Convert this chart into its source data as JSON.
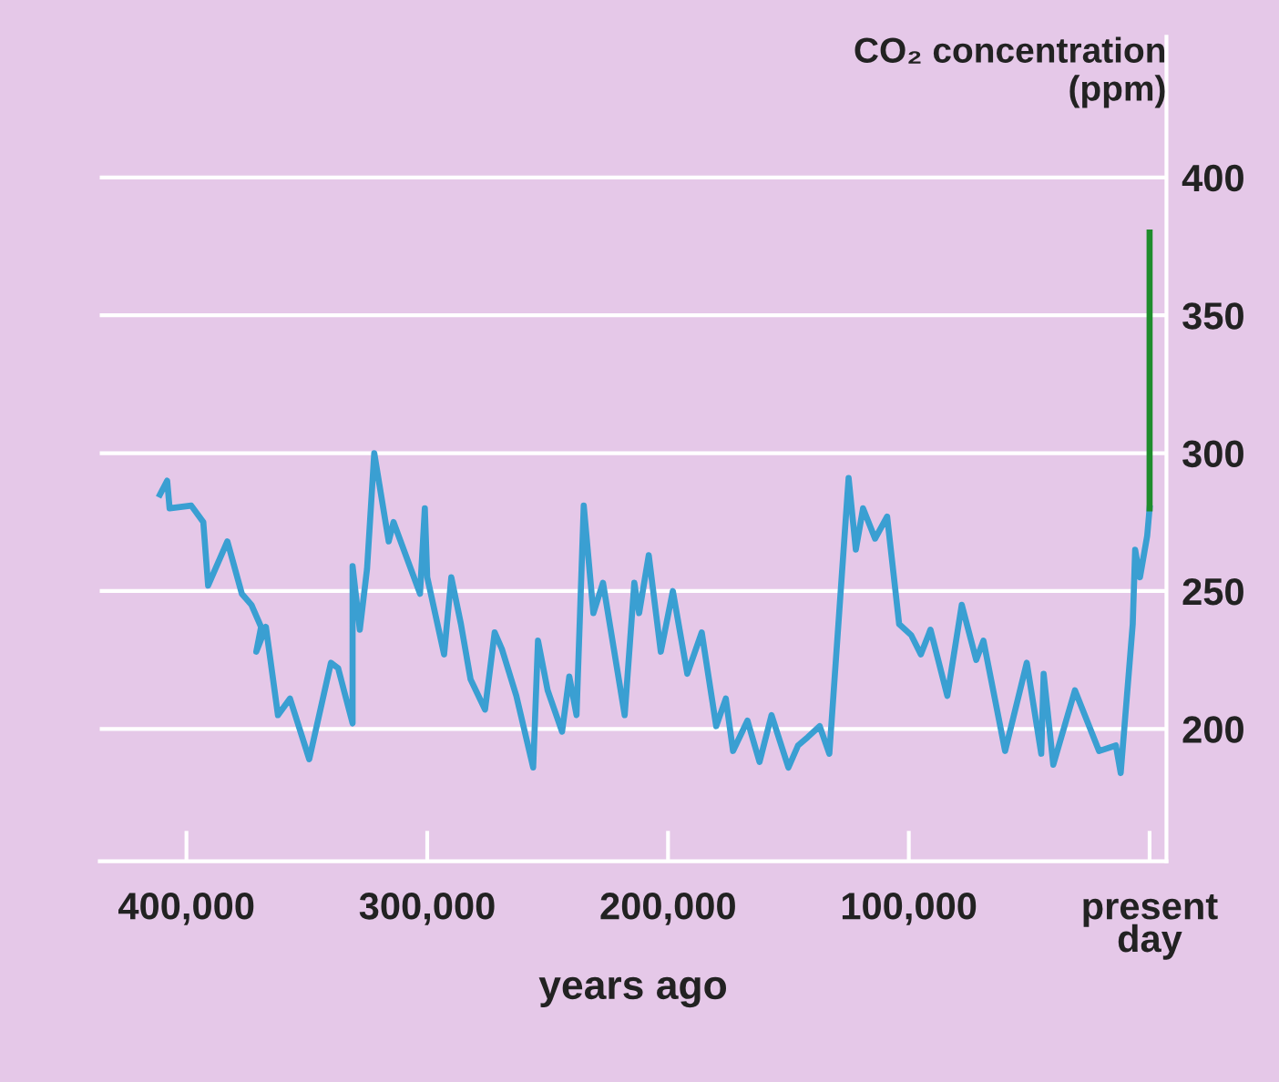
{
  "chart_data": {
    "type": "line",
    "ylabel": "CO₂ concentration\n(ppm)",
    "xlabel": "years ago",
    "series": [
      {
        "color": "#3a9fd2",
        "x": [
          411000,
          408000,
          407000,
          398000,
          393000,
          391000,
          383000,
          377000,
          373000,
          369000,
          371000,
          367000,
          362000,
          357000,
          349000,
          340000,
          337000,
          331000,
          331000,
          328000,
          325000,
          322000,
          316000,
          314000,
          303000,
          301000,
          300000,
          293000,
          290000,
          286000,
          282000,
          276000,
          272000,
          269000,
          263000,
          256000,
          254000,
          250000,
          244000,
          241000,
          238000,
          235000,
          231000,
          227000,
          218000,
          214000,
          212000,
          208000,
          203000,
          198000,
          192000,
          186000,
          180000,
          176000,
          173000,
          167000,
          162000,
          157000,
          150000,
          146000,
          142000,
          137000,
          133000,
          125000,
          122000,
          119000,
          114000,
          109000,
          104000,
          99000,
          95000,
          91000,
          84000,
          78000,
          72000,
          69000,
          60000,
          51000,
          45000,
          44000,
          40000,
          31000,
          21000,
          14000,
          12000,
          7000,
          6000,
          4000,
          1000,
          0
        ],
        "values": [
          285,
          290,
          280,
          281,
          275,
          252,
          268,
          249,
          245,
          237,
          228,
          237,
          205,
          211,
          189,
          224,
          222,
          202,
          259,
          236,
          258,
          300,
          268,
          275,
          249,
          280,
          255,
          227,
          255,
          238,
          218,
          207,
          235,
          229,
          212,
          186,
          232,
          214,
          199,
          219,
          205,
          281,
          242,
          253,
          205,
          253,
          242,
          263,
          228,
          250,
          220,
          235,
          201,
          211,
          192,
          203,
          188,
          205,
          186,
          194,
          197,
          201,
          191,
          291,
          265,
          280,
          269,
          277,
          238,
          234,
          227,
          236,
          212,
          245,
          225,
          232,
          192,
          224,
          191,
          220,
          187,
          214,
          192,
          194,
          184,
          238,
          265,
          255,
          270,
          280
        ]
      },
      {
        "color": "#1f8c2c",
        "x": [
          0,
          0
        ],
        "values": [
          280,
          380
        ]
      }
    ],
    "xlim": [
      436000,
      -7000
    ],
    "xticks": [
      {
        "value": 400000,
        "label": "400,000"
      },
      {
        "value": 300000,
        "label": "300,000"
      },
      {
        "value": 200000,
        "label": "200,000"
      },
      {
        "value": 100000,
        "label": "100,000"
      },
      {
        "value": 0,
        "label": "present\nday"
      }
    ],
    "ylim": [
      152,
      451
    ],
    "yticks": [
      200,
      250,
      300,
      350,
      400
    ],
    "grid": "y",
    "legend": false
  }
}
